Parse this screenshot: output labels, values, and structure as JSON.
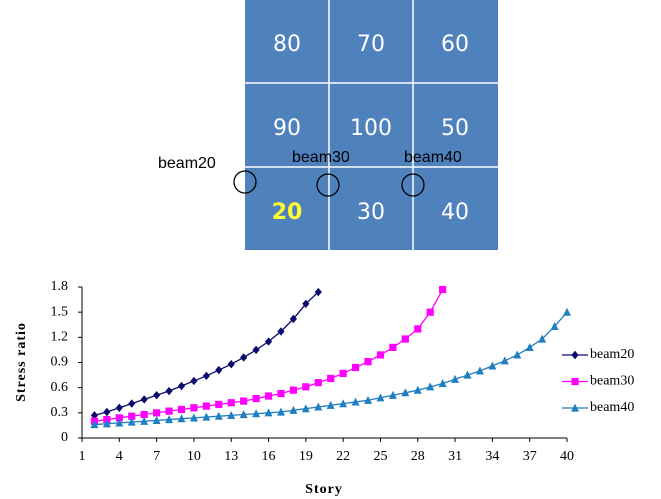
{
  "diagram": {
    "cells": [
      [
        {
          "label": "80",
          "color": "#ffffff"
        },
        {
          "label": "70",
          "color": "#ffffff"
        },
        {
          "label": "60",
          "color": "#ffffff"
        }
      ],
      [
        {
          "label": "90",
          "color": "#ffffff"
        },
        {
          "label": "100",
          "color": "#ffffff"
        },
        {
          "label": "50",
          "color": "#ffffff"
        }
      ],
      [
        {
          "label": "20",
          "color": "#ffff33"
        },
        {
          "label": "30",
          "color": "#ffffff"
        },
        {
          "label": "40",
          "color": "#ffffff"
        }
      ]
    ],
    "beams": [
      "beam20",
      "beam30",
      "beam40"
    ]
  },
  "chart_data": {
    "type": "line",
    "xlabel": "Story",
    "ylabel": "Stress ratio",
    "xlim": [
      1,
      40
    ],
    "ylim": [
      0,
      1.8
    ],
    "xticks": [
      1,
      4,
      7,
      10,
      13,
      16,
      19,
      22,
      25,
      28,
      31,
      34,
      37,
      40
    ],
    "yticks": [
      0,
      0.3,
      0.6,
      0.9,
      1.2,
      1.5,
      1.8
    ],
    "legend": "right",
    "series": [
      {
        "name": "beam20",
        "color": "#0b0b6e",
        "marker": "diamond",
        "x": [
          2,
          3,
          4,
          5,
          6,
          7,
          8,
          9,
          10,
          11,
          12,
          13,
          14,
          15,
          16,
          17,
          18,
          19,
          20
        ],
        "values": [
          0.27,
          0.31,
          0.36,
          0.41,
          0.46,
          0.51,
          0.56,
          0.62,
          0.68,
          0.74,
          0.81,
          0.88,
          0.96,
          1.05,
          1.15,
          1.27,
          1.42,
          1.6,
          1.74
        ]
      },
      {
        "name": "beam30",
        "color": "#ff00ff",
        "marker": "square",
        "x": [
          2,
          3,
          4,
          5,
          6,
          7,
          8,
          9,
          10,
          11,
          12,
          13,
          14,
          15,
          16,
          17,
          18,
          19,
          20,
          21,
          22,
          23,
          24,
          25,
          26,
          27,
          28,
          29,
          30
        ],
        "values": [
          0.2,
          0.22,
          0.24,
          0.26,
          0.28,
          0.3,
          0.32,
          0.34,
          0.36,
          0.38,
          0.4,
          0.42,
          0.44,
          0.47,
          0.5,
          0.53,
          0.57,
          0.61,
          0.66,
          0.71,
          0.77,
          0.84,
          0.91,
          0.99,
          1.08,
          1.18,
          1.3,
          1.5,
          1.77
        ]
      },
      {
        "name": "beam40",
        "color": "#1f7fc0",
        "marker": "triangle",
        "x": [
          2,
          3,
          4,
          5,
          6,
          7,
          8,
          9,
          10,
          11,
          12,
          13,
          14,
          15,
          16,
          17,
          18,
          19,
          20,
          21,
          22,
          23,
          24,
          25,
          26,
          27,
          28,
          29,
          30,
          31,
          32,
          33,
          34,
          35,
          36,
          37,
          38,
          39,
          40
        ],
        "values": [
          0.16,
          0.17,
          0.18,
          0.19,
          0.2,
          0.21,
          0.22,
          0.23,
          0.24,
          0.25,
          0.26,
          0.27,
          0.28,
          0.29,
          0.3,
          0.31,
          0.33,
          0.35,
          0.37,
          0.39,
          0.41,
          0.43,
          0.45,
          0.48,
          0.51,
          0.54,
          0.57,
          0.61,
          0.65,
          0.7,
          0.75,
          0.8,
          0.86,
          0.92,
          0.99,
          1.08,
          1.18,
          1.33,
          1.5
        ]
      }
    ]
  }
}
